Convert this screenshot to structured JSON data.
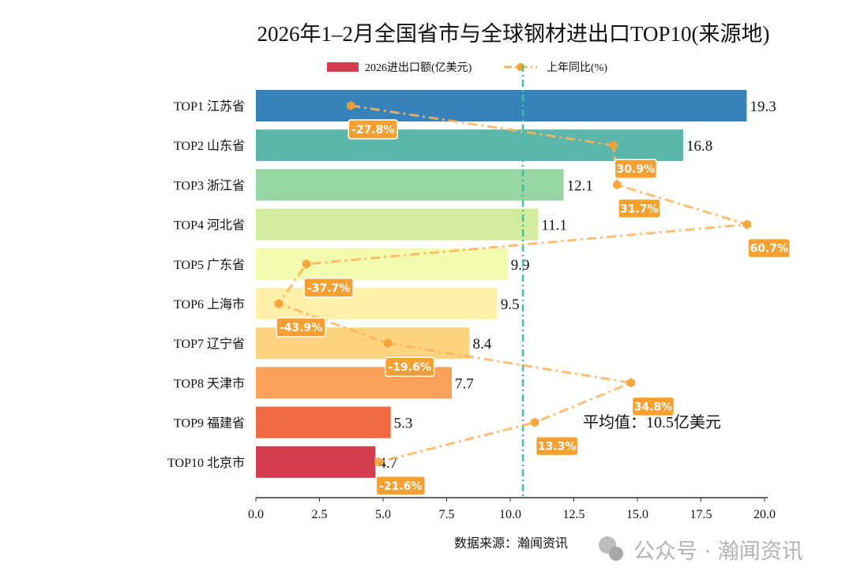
{
  "chart_data": {
    "type": "bar",
    "orientation": "horizontal",
    "title": "2026年1–2月全国省市与全球钢材进出口TOP10(来源地)",
    "categories": [
      "TOP1 江苏省",
      "TOP2 山东省",
      "TOP3 浙江省",
      "TOP4 河北省",
      "TOP5 广东省",
      "TOP6 上海市",
      "TOP7 辽宁省",
      "TOP8 天津市",
      "TOP9 福建省",
      "TOP10 北京市"
    ],
    "series": [
      {
        "name": "2026进出口额(亿美元)",
        "type": "bar",
        "values": [
          19.3,
          16.8,
          12.1,
          11.1,
          9.9,
          9.5,
          8.4,
          7.7,
          5.3,
          4.7
        ],
        "data_labels": [
          "19.3",
          "16.8",
          "12.1",
          "11.1",
          "9.9",
          "9.5",
          "8.4",
          "7.7",
          "5.3",
          "4.7"
        ],
        "colors": [
          "#3682ba",
          "#5cb7aa",
          "#98d5a4",
          "#d1ec9c",
          "#f3faad",
          "#fef0a7",
          "#fdd380",
          "#fba05b",
          "#f06943",
          "#d43d4f"
        ]
      },
      {
        "name": "上年同比(%)",
        "type": "line",
        "values": [
          -27.8,
          30.9,
          31.7,
          60.7,
          -37.7,
          -43.9,
          -19.6,
          34.8,
          13.3,
          -21.6
        ],
        "data_labels": [
          "-27.8%",
          "30.9%",
          "31.7%",
          "60.7%",
          "-37.7%",
          "-43.9%",
          "-19.6%",
          "34.8%",
          "13.3%",
          "-21.6%"
        ],
        "color": "#ffb35a",
        "style": "dash-dot",
        "marker": "hexagon"
      }
    ],
    "xlim": [
      0,
      20
    ],
    "xticks": [
      "0.0",
      "2.5",
      "5.0",
      "7.5",
      "10.0",
      "12.5",
      "15.0",
      "17.5",
      "20.0"
    ],
    "average": {
      "value": 10.5,
      "label": "平均值：10.5亿美元",
      "color": "#3cc3a0"
    },
    "legend": "top-center",
    "grid": false
  },
  "source": "数据来源：瀚闻资讯",
  "watermark": "公众号 · 瀚闻资讯"
}
